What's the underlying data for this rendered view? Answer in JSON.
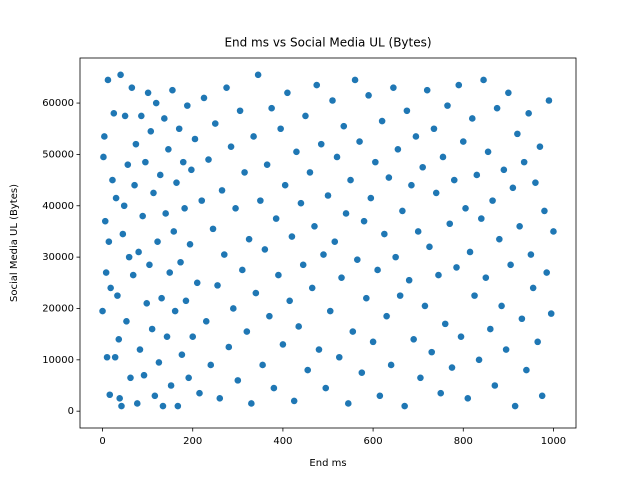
{
  "chart_data": {
    "type": "scatter",
    "title": "End ms vs Social Media UL (Bytes)",
    "x_label": "End ms",
    "y_label": "Social Media UL (Bytes)",
    "color": "#1f77b4",
    "xlim": [
      -50,
      1050
    ],
    "ylim": [
      -3275,
      68775
    ],
    "xticks": [
      0,
      200,
      400,
      600,
      800,
      1000
    ],
    "yticks": [
      0,
      10000,
      20000,
      30000,
      40000,
      50000,
      60000
    ],
    "x": [
      0,
      2,
      4,
      6,
      8,
      10,
      12,
      14,
      16,
      18,
      22,
      25,
      28,
      30,
      33,
      36,
      38,
      40,
      42,
      45,
      48,
      50,
      53,
      56,
      59,
      62,
      65,
      68,
      71,
      74,
      77,
      80,
      83,
      86,
      89,
      92,
      95,
      98,
      101,
      104,
      107,
      110,
      113,
      116,
      119,
      122,
      125,
      128,
      131,
      134,
      137,
      140,
      143,
      146,
      149,
      152,
      155,
      158,
      161,
      164,
      167,
      170,
      173,
      176,
      179,
      182,
      185,
      188,
      191,
      194,
      197,
      200,
      205,
      210,
      215,
      220,
      225,
      230,
      235,
      240,
      245,
      250,
      255,
      260,
      265,
      270,
      275,
      280,
      285,
      290,
      295,
      300,
      305,
      310,
      315,
      320,
      325,
      330,
      335,
      340,
      345,
      350,
      355,
      360,
      365,
      370,
      375,
      380,
      385,
      390,
      395,
      400,
      405,
      410,
      415,
      420,
      425,
      430,
      435,
      440,
      445,
      450,
      455,
      460,
      465,
      470,
      475,
      480,
      485,
      490,
      495,
      500,
      505,
      510,
      515,
      520,
      525,
      530,
      535,
      540,
      545,
      550,
      555,
      560,
      565,
      570,
      575,
      580,
      585,
      590,
      595,
      600,
      605,
      610,
      615,
      620,
      625,
      630,
      635,
      640,
      645,
      650,
      655,
      660,
      665,
      670,
      675,
      680,
      685,
      690,
      695,
      700,
      705,
      710,
      715,
      720,
      725,
      730,
      735,
      740,
      745,
      750,
      755,
      760,
      765,
      770,
      775,
      780,
      785,
      790,
      795,
      800,
      805,
      810,
      815,
      820,
      825,
      830,
      835,
      840,
      845,
      850,
      855,
      860,
      865,
      870,
      875,
      880,
      885,
      890,
      895,
      900,
      905,
      910,
      915,
      920,
      925,
      930,
      935,
      940,
      945,
      950,
      955,
      960,
      965,
      970,
      975,
      980,
      985,
      990,
      995,
      1000
    ],
    "y": [
      19500,
      49500,
      53500,
      37000,
      27000,
      10500,
      64500,
      33000,
      3200,
      24000,
      45000,
      58000,
      10500,
      41500,
      22500,
      14000,
      2500,
      65500,
      1000,
      34500,
      40000,
      57500,
      17500,
      48000,
      30000,
      6500,
      63000,
      26500,
      44000,
      52000,
      1500,
      31000,
      12000,
      57500,
      38000,
      7000,
      48500,
      21000,
      62000,
      28500,
      54500,
      16000,
      42500,
      3000,
      60000,
      33000,
      9500,
      46000,
      22000,
      1000,
      57000,
      38500,
      14500,
      51000,
      27000,
      5000,
      62500,
      35000,
      19500,
      44500,
      1000,
      55000,
      29000,
      11000,
      48500,
      39500,
      21500,
      59500,
      6500,
      32500,
      47000,
      14500,
      53000,
      25000,
      3500,
      41000,
      61000,
      17500,
      49000,
      9000,
      35500,
      56000,
      24500,
      2500,
      43000,
      30500,
      63000,
      12500,
      51500,
      20000,
      39500,
      6000,
      58500,
      27500,
      46500,
      15500,
      33500,
      1500,
      53500,
      23000,
      65500,
      41000,
      9000,
      31500,
      48000,
      18500,
      59000,
      4500,
      37500,
      26500,
      55000,
      13000,
      44000,
      62000,
      21500,
      34000,
      2000,
      50500,
      16500,
      40500,
      28500,
      57500,
      8000,
      46500,
      24000,
      36000,
      63500,
      12000,
      52000,
      30500,
      4500,
      42000,
      19500,
      60500,
      33000,
      49500,
      10500,
      26000,
      55500,
      38500,
      1500,
      45000,
      15500,
      64500,
      29500,
      52500,
      7500,
      37000,
      22000,
      61500,
      41500,
      13500,
      48500,
      27500,
      3000,
      56500,
      34500,
      18500,
      45500,
      9000,
      63000,
      30000,
      51000,
      22500,
      39000,
      1000,
      58500,
      25500,
      44000,
      14000,
      53500,
      35000,
      6500,
      47500,
      20500,
      62500,
      32000,
      11500,
      55000,
      42500,
      26500,
      3500,
      49500,
      17000,
      59500,
      36500,
      8500,
      45000,
      28000,
      63500,
      14500,
      52500,
      39500,
      2500,
      31000,
      57000,
      22500,
      46000,
      10000,
      37500,
      64500,
      26000,
      50500,
      16000,
      41000,
      5000,
      59000,
      33500,
      20500,
      47000,
      12000,
      62000,
      28500,
      43500,
      1000,
      54000,
      36000,
      18000,
      48500,
      8000,
      58000,
      30500,
      24000,
      44500,
      13500,
      51500,
      3000,
      39000,
      27000,
      60500,
      19000,
      35000
    ]
  }
}
